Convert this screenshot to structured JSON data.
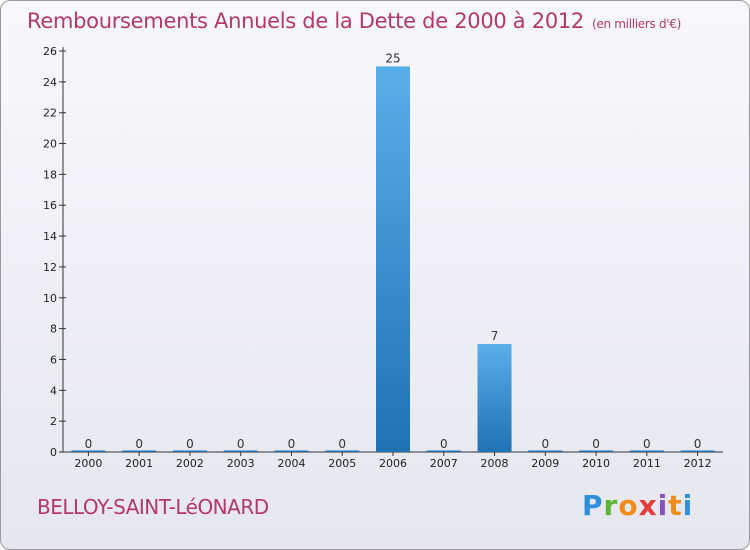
{
  "header": {
    "title": "Remboursements Annuels de la Dette de 2000 à 2012",
    "subtitle": "(en milliers d'€)"
  },
  "footer": {
    "location": "BELLOY-SAINT-LéONARD",
    "logo_letters": [
      "P",
      "r",
      "o",
      "x",
      "i",
      "t",
      "i"
    ]
  },
  "colors": {
    "title": "#b3386a",
    "bar_top": "#5aaeea",
    "bar_bottom": "#1f72b3",
    "axis": "#333333"
  },
  "chart_data": {
    "type": "bar",
    "title": "Remboursements Annuels de la Dette de 2000 à 2012",
    "subtitle": "(en milliers d'€)",
    "xlabel": "",
    "ylabel": "",
    "categories": [
      "2000",
      "2001",
      "2002",
      "2003",
      "2004",
      "2005",
      "2006",
      "2007",
      "2008",
      "2009",
      "2010",
      "2011",
      "2012"
    ],
    "values": [
      0,
      0,
      0,
      0,
      0,
      0,
      25,
      0,
      7,
      0,
      0,
      0,
      0
    ],
    "data_labels": [
      "0",
      "0",
      "0",
      "0",
      "0",
      "0",
      "25",
      "0",
      "7",
      "0",
      "0",
      "0",
      "0"
    ],
    "ylim": [
      0,
      26
    ],
    "yticks": [
      0,
      2,
      4,
      6,
      8,
      10,
      12,
      14,
      16,
      18,
      20,
      22,
      24,
      26
    ],
    "grid": false
  }
}
